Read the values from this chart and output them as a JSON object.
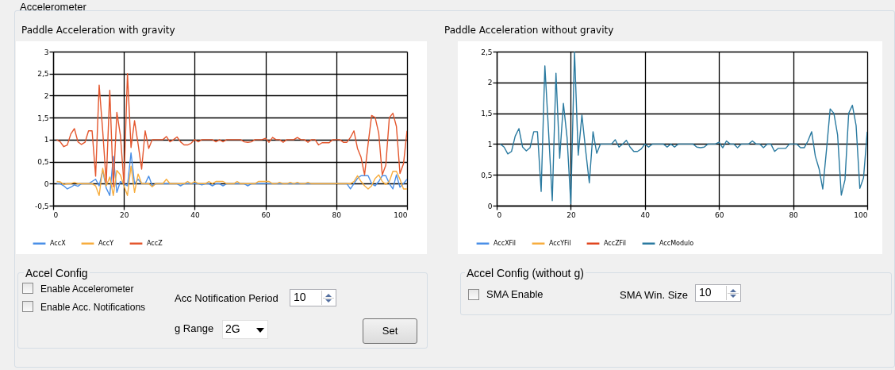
{
  "chart_data": [
    {
      "type": "line",
      "title": "Paddle Acceleration with gravity",
      "x": [
        1,
        2,
        3,
        4,
        5,
        6,
        7,
        8,
        9,
        10,
        11,
        12,
        13,
        14,
        15,
        16,
        17,
        18,
        19,
        20,
        21,
        22,
        23,
        24,
        25,
        26,
        27,
        28,
        29,
        30,
        31,
        32,
        33,
        34,
        35,
        36,
        37,
        38,
        39,
        40,
        41,
        42,
        43,
        44,
        45,
        46,
        47,
        48,
        49,
        50,
        51,
        52,
        53,
        54,
        55,
        56,
        57,
        58,
        59,
        60,
        61,
        62,
        63,
        64,
        65,
        66,
        67,
        68,
        69,
        70,
        71,
        72,
        73,
        74,
        75,
        76,
        77,
        78,
        79,
        80,
        81,
        82,
        83,
        84,
        85,
        86,
        87,
        88,
        89,
        90,
        91,
        92,
        93,
        94,
        95,
        96,
        97,
        98,
        99,
        100
      ],
      "series": [
        {
          "name": "AccX",
          "color": "#4a8fe7",
          "values": [
            0,
            0,
            -0.05,
            -0.12,
            -0.08,
            -0.03,
            -0.06,
            0,
            0,
            0,
            0.05,
            0.1,
            -0.05,
            0.3,
            -0.1,
            -0.27,
            0.62,
            -0.2,
            0.05,
            0,
            -0.05,
            0.7,
            0,
            0.1,
            0,
            0,
            0.17,
            -0.05,
            0,
            0,
            0,
            0,
            0,
            0,
            0,
            -0.05,
            0,
            0,
            0,
            0,
            0,
            -0.03,
            0,
            0,
            -0.05,
            0,
            0,
            -0.05,
            0,
            0,
            0,
            0,
            0,
            0,
            -0.05,
            0,
            0,
            0,
            0,
            0,
            0,
            0,
            0,
            0,
            0,
            0,
            0,
            0,
            0,
            0,
            0,
            0,
            0,
            0,
            0,
            0,
            0,
            0,
            0,
            0,
            0,
            0,
            0,
            -0.12,
            0,
            0.12,
            0.18,
            0.18,
            0.18,
            0,
            -0.05,
            0.05,
            0.18,
            0.18,
            0,
            -0.12,
            0.2,
            -0.08,
            0,
            0.1
          ]
        },
        {
          "name": "AccY",
          "color": "#f7ad3e",
          "values": [
            0.05,
            0.04,
            -0.02,
            0,
            0,
            0.03,
            0,
            0,
            0,
            0,
            0,
            -0.05,
            -0.27,
            0.35,
            -0.05,
            0.15,
            -0.27,
            0.3,
            0.2,
            -0.05,
            -0.27,
            0.4,
            -0.2,
            0.22,
            0,
            0,
            0,
            -0.07,
            0,
            0,
            0,
            0.1,
            0,
            0,
            0,
            0,
            0,
            0.05,
            0,
            0.05,
            0,
            0,
            0,
            0.05,
            0,
            0.05,
            0.05,
            0.05,
            0,
            0,
            0,
            0.05,
            0,
            0,
            0,
            0,
            0,
            0.05,
            0.05,
            0.05,
            0.05,
            0,
            0,
            0.03,
            0,
            0,
            0.03,
            0,
            0.03,
            0,
            0,
            0.03,
            0,
            0,
            0,
            0,
            0,
            0,
            0,
            0,
            0,
            0,
            0,
            0,
            0.05,
            0.18,
            0.05,
            -0.05,
            -0.12,
            -0.05,
            0.12,
            0.2,
            0.05,
            -0.02,
            0.05,
            0.28,
            0.28,
            0.1,
            -0.12,
            -0.12
          ]
        },
        {
          "name": "AccZ",
          "color": "#e4572e",
          "values": [
            1,
            0.95,
            0.84,
            0.88,
            1.13,
            1.25,
            0.95,
            0.89,
            0.94,
            1.2,
            1.2,
            0.17,
            2.24,
            1.2,
            0.03,
            2.12,
            -0.07,
            1.62,
            1.1,
            0,
            2.5,
            0.82,
            1.43,
            0.9,
            0.33,
            1.2,
            0.8,
            1,
            1,
            1,
            1,
            1.07,
            0.95,
            1,
            1.06,
            0.95,
            0.88,
            0.88,
            0.92,
            1,
            0.95,
            1,
            1,
            1,
            1,
            0.95,
            1,
            0.95,
            1,
            1,
            1,
            1,
            1,
            0.95,
            0.94,
            0.95,
            1,
            1,
            1,
            1.03,
            0.94,
            1.05,
            1,
            1,
            0.94,
            1,
            1,
            1,
            1.05,
            1,
            1,
            0.94,
            1,
            1,
            0.88,
            0.93,
            0.93,
            0.93,
            1,
            1,
            1,
            0.94,
            0.94,
            1.05,
            1.2,
            0.8,
            0.6,
            0.2,
            0.9,
            1.55,
            1.5,
            1.15,
            0.2,
            0.42,
            1.5,
            1.6,
            1.3,
            0.23,
            0.45,
            1.2
          ]
        }
      ],
      "xlim": [
        0,
        100
      ],
      "xticks": [
        0,
        20,
        40,
        60,
        80,
        100
      ],
      "ylim": [
        -0.5,
        3
      ],
      "yticks": [
        {
          "value": -0.5,
          "label": "-0,5"
        },
        0,
        {
          "value": 0.5,
          "label": "0,5"
        },
        1,
        {
          "value": 1.5,
          "label": "1,5"
        },
        2,
        {
          "value": 2.5,
          "label": "2,5"
        },
        3
      ],
      "grid": true,
      "legend": "bottom",
      "annotations": [
        "Accelerometer",
        "Accel Config",
        "Enable Accelerometer",
        "Enable Acc. Notifications",
        "Acc Notification Period",
        "10",
        "g Range",
        "2G",
        "Set"
      ]
    },
    {
      "type": "line",
      "title": "Paddle Acceleration without gravity",
      "x": [
        1,
        2,
        3,
        4,
        5,
        6,
        7,
        8,
        9,
        10,
        11,
        12,
        13,
        14,
        15,
        16,
        17,
        18,
        19,
        20,
        21,
        22,
        23,
        24,
        25,
        26,
        27,
        28,
        29,
        30,
        31,
        32,
        33,
        34,
        35,
        36,
        37,
        38,
        39,
        40,
        41,
        42,
        43,
        44,
        45,
        46,
        47,
        48,
        49,
        50,
        51,
        52,
        53,
        54,
        55,
        56,
        57,
        58,
        59,
        60,
        61,
        62,
        63,
        64,
        65,
        66,
        67,
        68,
        69,
        70,
        71,
        72,
        73,
        74,
        75,
        76,
        77,
        78,
        79,
        80,
        81,
        82,
        83,
        84,
        85,
        86,
        87,
        88,
        89,
        90,
        91,
        92,
        93,
        94,
        95,
        96,
        97,
        98,
        99,
        100
      ],
      "series": [
        {
          "name": "AccXFil",
          "color": "#4a8fe7",
          "values": [
            null,
            null,
            null,
            null,
            null,
            null,
            null,
            null,
            null,
            null,
            null,
            null,
            null,
            null,
            null,
            null,
            null,
            null,
            null,
            null,
            null,
            null,
            null,
            null,
            null,
            null,
            null,
            null,
            null,
            null,
            null,
            null,
            null,
            null,
            null,
            null,
            null,
            null,
            null,
            null,
            null,
            null,
            null,
            null,
            null,
            null,
            null,
            null,
            null,
            null,
            null,
            null,
            null,
            null,
            null,
            null,
            null,
            null,
            null,
            null,
            null,
            null,
            null,
            null,
            null,
            null,
            null,
            null,
            null,
            null,
            null,
            null,
            null,
            null,
            null,
            null,
            null,
            null,
            null,
            null,
            null,
            null,
            null,
            null,
            null,
            null,
            null,
            null,
            null,
            null,
            null,
            null,
            null,
            null,
            null,
            null,
            null,
            null,
            null,
            null
          ]
        },
        {
          "name": "AccYFil",
          "color": "#f7ad3e",
          "values": [
            null,
            null,
            null,
            null,
            null,
            null,
            null,
            null,
            null,
            null,
            null,
            null,
            null,
            null,
            null,
            null,
            null,
            null,
            null,
            null,
            null,
            null,
            null,
            null,
            null,
            null,
            null,
            null,
            null,
            null,
            null,
            null,
            null,
            null,
            null,
            null,
            null,
            null,
            null,
            null,
            null,
            null,
            null,
            null,
            null,
            null,
            null,
            null,
            null,
            null,
            null,
            null,
            null,
            null,
            null,
            null,
            null,
            null,
            null,
            null,
            null,
            null,
            null,
            null,
            null,
            null,
            null,
            null,
            null,
            null,
            null,
            null,
            null,
            null,
            null,
            null,
            null,
            null,
            null,
            null,
            null,
            null,
            null,
            null,
            null,
            null,
            null,
            null,
            null,
            null,
            null,
            null,
            null,
            null,
            null,
            null,
            null,
            null,
            null,
            null
          ]
        },
        {
          "name": "AccZFil",
          "color": "#e0461f",
          "values": [
            null,
            null,
            null,
            null,
            null,
            null,
            null,
            null,
            null,
            null,
            null,
            null,
            null,
            null,
            null,
            null,
            null,
            null,
            null,
            null,
            null,
            null,
            null,
            null,
            null,
            null,
            null,
            null,
            null,
            null,
            null,
            null,
            null,
            null,
            null,
            null,
            null,
            null,
            null,
            null,
            null,
            null,
            null,
            null,
            null,
            null,
            null,
            null,
            null,
            null,
            null,
            null,
            null,
            null,
            null,
            null,
            null,
            null,
            null,
            null,
            null,
            null,
            null,
            null,
            null,
            null,
            null,
            null,
            null,
            null,
            null,
            null,
            null,
            null,
            null,
            null,
            null,
            null,
            null,
            null,
            null,
            null,
            null,
            null,
            null,
            null,
            null,
            null,
            null,
            null,
            null,
            null,
            null,
            null,
            null,
            null,
            null,
            null,
            null,
            null
          ]
        },
        {
          "name": "AccModulo",
          "color": "#2a7aa0",
          "values": [
            1,
            0.95,
            0.84,
            0.88,
            1.13,
            1.25,
            0.95,
            0.89,
            0.94,
            1.2,
            1.2,
            0.23,
            2.27,
            1.2,
            0.08,
            2.15,
            0.77,
            1.66,
            1.1,
            0.03,
            2.5,
            0.82,
            1.47,
            0.9,
            0.37,
            1.2,
            0.85,
            1,
            1,
            1,
            1,
            1.07,
            0.95,
            1,
            1.06,
            0.95,
            0.88,
            0.88,
            0.92,
            1,
            0.95,
            1,
            1,
            1,
            1,
            0.95,
            1,
            0.95,
            1,
            1,
            1,
            1,
            1,
            0.95,
            0.94,
            0.95,
            1,
            1,
            1,
            1.03,
            0.94,
            1.05,
            1,
            1,
            0.94,
            1,
            1,
            1,
            1.05,
            1,
            1,
            0.94,
            1,
            1,
            0.88,
            0.93,
            0.93,
            0.93,
            1,
            1,
            1,
            0.94,
            0.94,
            1.05,
            1.2,
            0.8,
            0.6,
            0.27,
            0.9,
            1.57,
            1.5,
            1.15,
            0.17,
            0.42,
            1.5,
            1.63,
            1.3,
            0.28,
            0.45,
            1.2
          ]
        }
      ],
      "xlim": [
        0,
        100
      ],
      "xticks": [
        0,
        20,
        40,
        60,
        80,
        100
      ],
      "ylim": [
        0,
        2.5
      ],
      "yticks": [
        0,
        {
          "value": 0.5,
          "label": "0,5"
        },
        1,
        {
          "value": 1.5,
          "label": "1,5"
        },
        2,
        {
          "value": 2.5,
          "label": "2,5"
        }
      ],
      "grid": true,
      "legend": "bottom",
      "annotations": [
        "Accel Config (without g)",
        "SMA Enable",
        "SMA Win. Size",
        "10"
      ]
    }
  ]
}
